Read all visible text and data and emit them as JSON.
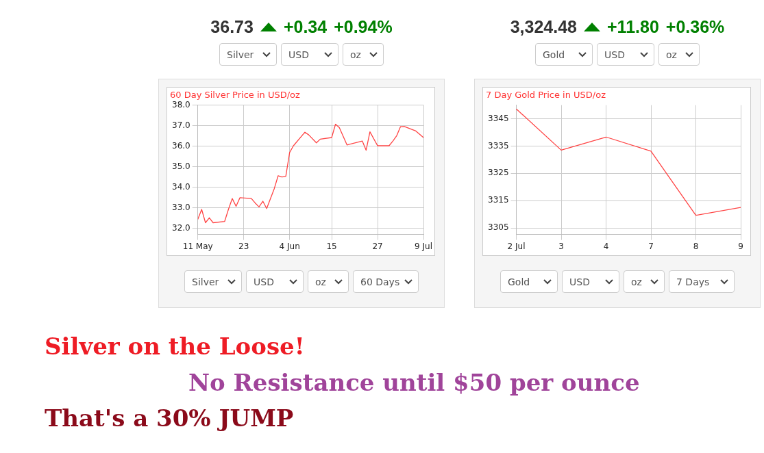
{
  "chart_data": [
    {
      "type": "line",
      "title": "60 Day Silver Price in USD/oz",
      "x": [
        "--05-11",
        "--05-12",
        "--05-13",
        "--05-14",
        "--05-15",
        "--05-18",
        "--05-19",
        "--05-20",
        "--05-21",
        "--05-22",
        "--05-25",
        "--05-26",
        "--05-27",
        "--05-28",
        "--05-29",
        "--05-31",
        "--06-01",
        "--06-02",
        "--06-03",
        "--06-04",
        "--06-05",
        "--06-08",
        "--06-09",
        "--06-11",
        "--06-12",
        "--06-15",
        "--06-16",
        "--06-17",
        "--06-19",
        "--06-23",
        "--06-24",
        "--06-25",
        "--06-27",
        "--06-30",
        "--07-01",
        "--07-02",
        "--07-03",
        "--07-04",
        "--07-07",
        "--07-09"
      ],
      "series": [
        {
          "color": "#ff4444",
          "values": [
            32.44,
            32.92,
            32.27,
            32.51,
            32.27,
            32.33,
            32.92,
            33.45,
            33.07,
            33.49,
            33.45,
            33.23,
            33.04,
            33.32,
            32.96,
            33.94,
            34.56,
            34.5,
            34.53,
            35.69,
            36.02,
            36.68,
            36.55,
            36.16,
            36.34,
            36.42,
            37.07,
            36.9,
            36.06,
            36.25,
            35.8,
            36.7,
            36.02,
            36.02,
            36.25,
            36.51,
            36.95,
            36.96,
            36.74,
            36.42
          ]
        }
      ],
      "xlim": [
        "--05-11",
        "--07-09"
      ],
      "xticks": [
        {
          "value": "--05-11",
          "label": "11 May"
        },
        {
          "value": "--05-23",
          "label": "23"
        },
        {
          "value": "--06-04",
          "label": "4 Jun"
        },
        {
          "value": "--06-15",
          "label": "15"
        },
        {
          "value": "--06-27",
          "label": "27"
        },
        {
          "value": "--07-09",
          "label": "9 Jul"
        }
      ],
      "ylim": [
        31.7,
        38
      ],
      "yticks": [
        {
          "value": 32,
          "label": "32.0"
        },
        {
          "value": 33,
          "label": "33.0"
        },
        {
          "value": 34,
          "label": "34.0"
        },
        {
          "value": 35,
          "label": "35.0"
        },
        {
          "value": 36,
          "label": "36.0"
        },
        {
          "value": 37,
          "label": "37.0"
        },
        {
          "value": 38,
          "label": "38.0"
        }
      ],
      "grid": true,
      "annotations": [
        "36.73",
        "+0.34",
        "+0.94%",
        "Silver",
        "USD",
        "oz",
        "Silver",
        "USD",
        "oz",
        "60 Days"
      ]
    },
    {
      "type": "line",
      "title": "7 Day Gold Price in USD/oz",
      "categories": [
        "2 Jul",
        "3",
        "4",
        "7",
        "8",
        "9"
      ],
      "series": [
        {
          "color": "#ff4444",
          "values": [
            3348.6,
            3333.5,
            3338.3,
            3333.1,
            3309.6,
            3312.5
          ]
        }
      ],
      "ylim": [
        3302.6,
        3350
      ],
      "yticks": [
        3305,
        3315,
        3325,
        3335,
        3345
      ],
      "grid": true,
      "annotations": [
        "3,324.48",
        "+11.80",
        "+0.36%",
        "Gold",
        "USD",
        "oz",
        "Gold",
        "USD",
        "oz",
        "7 Days"
      ]
    },
    {
      "type": "other",
      "annotations": [
        "Silver on the Loose!",
        "No Resistance until $50 per ounce",
        "That's a 30% JUMP"
      ]
    }
  ]
}
